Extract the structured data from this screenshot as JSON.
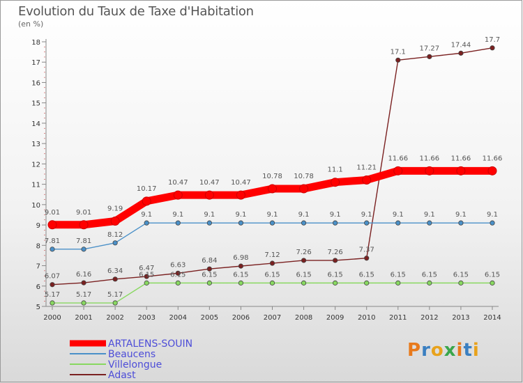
{
  "title": "Evolution du Taux de Taxe d'Habitation",
  "subtitle": "(en %)",
  "logo": {
    "letters": [
      "P",
      "r",
      "o",
      "x",
      "i",
      "t",
      "i"
    ],
    "colors": [
      "#e87a1c",
      "#3a7fc1",
      "#e8a21c",
      "#3aa64b",
      "#e87a1c",
      "#3a7fc1",
      "#e8a21c"
    ]
  },
  "chart_data": {
    "type": "line",
    "x": [
      2000,
      2001,
      2002,
      2003,
      2004,
      2005,
      2006,
      2007,
      2008,
      2009,
      2010,
      2011,
      2012,
      2013,
      2014
    ],
    "ylim": [
      5,
      18
    ],
    "yticks": [
      5,
      6,
      7,
      8,
      9,
      10,
      11,
      12,
      13,
      14,
      15,
      16,
      17,
      18
    ],
    "legend": "bottom-left",
    "series": [
      {
        "name": "ARTALENS-SOUIN",
        "color": "#ff0000",
        "values": [
          9.01,
          9.01,
          9.19,
          10.17,
          10.47,
          10.47,
          10.47,
          10.78,
          10.78,
          11.1,
          11.21,
          11.66,
          11.66,
          11.66,
          11.66
        ],
        "labels": [
          "9.01",
          "9.01",
          "9.19",
          "10.17",
          "10.47",
          "10.47",
          "10.47",
          "10.78",
          "10.78",
          "11.1",
          "11.21",
          "11.66",
          "11.66",
          "11.66",
          "11.66"
        ]
      },
      {
        "name": "Beaucens",
        "color": "#4a90c8",
        "values": [
          7.81,
          7.81,
          8.12,
          9.1,
          9.1,
          9.1,
          9.1,
          9.1,
          9.1,
          9.1,
          9.1,
          9.1,
          9.1,
          9.1,
          9.1
        ],
        "labels": [
          "7.81",
          "7.81",
          "8.12",
          "9.1",
          "9.1",
          "9.1",
          "9.1",
          "9.1",
          "9.1",
          "9.1",
          "9.1",
          "9.1",
          "9.1",
          "9.1",
          "9.1"
        ]
      },
      {
        "name": "Villelongue",
        "color": "#88d860",
        "values": [
          5.17,
          5.17,
          5.17,
          6.15,
          6.15,
          6.15,
          6.15,
          6.15,
          6.15,
          6.15,
          6.15,
          6.15,
          6.15,
          6.15,
          6.15
        ],
        "labels": [
          "5.17",
          "5.17",
          "5.17",
          "6.15",
          "6.15",
          "6.15",
          "6.15",
          "6.15",
          "6.15",
          "6.15",
          "6.15",
          "6.15",
          "6.15",
          "6.15",
          "6.15"
        ]
      },
      {
        "name": "Adast",
        "color": "#7a2020",
        "values": [
          6.07,
          6.16,
          6.34,
          6.47,
          6.63,
          6.84,
          6.98,
          7.12,
          7.26,
          7.26,
          7.37,
          17.1,
          17.27,
          17.44,
          17.7
        ],
        "labels": [
          "6.07",
          "6.16",
          "6.34",
          "6.47",
          "6.63",
          "6.84",
          "6.98",
          "7.12",
          "7.26",
          "7.26",
          "7.37",
          "17.1",
          "17.27",
          "17.44",
          "17.7"
        ]
      }
    ]
  }
}
